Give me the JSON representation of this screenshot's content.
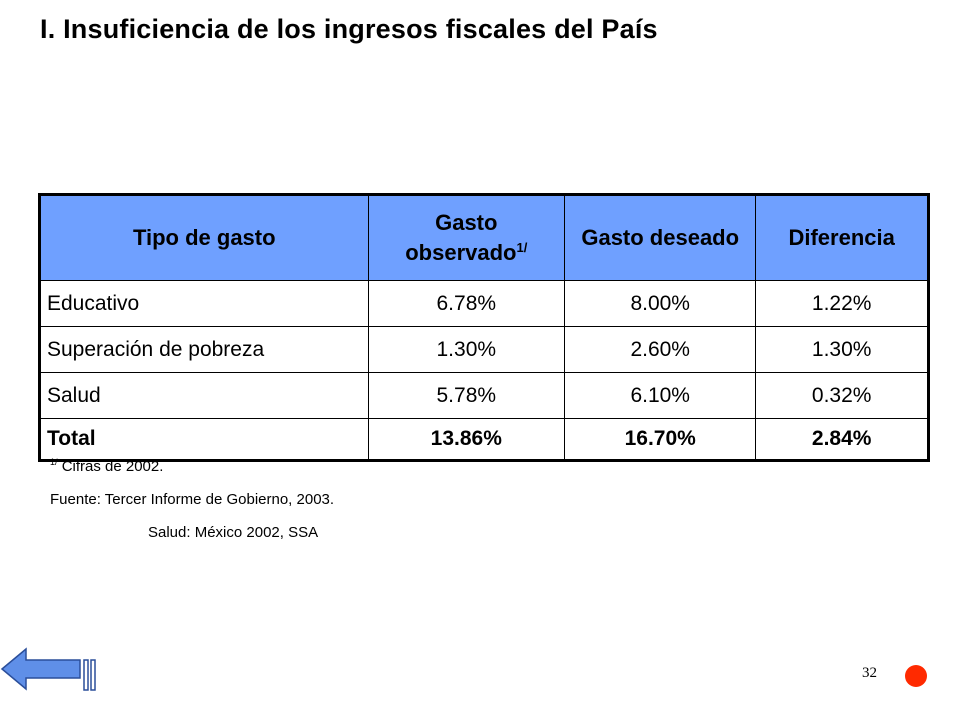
{
  "slide": {
    "title": "I. Insuficiencia de los ingresos fiscales del País",
    "page_number": "32"
  },
  "table": {
    "headers": {
      "tipo": "Tipo de gasto",
      "observado": "Gasto observado",
      "observado_sup": "1/",
      "deseado": "Gasto deseado",
      "diferencia": "Diferencia"
    },
    "rows": [
      {
        "tipo": "Educativo",
        "observado": "6.78%",
        "deseado": "8.00%",
        "diferencia": "1.22%"
      },
      {
        "tipo": "Superación de pobreza",
        "observado": "1.30%",
        "deseado": "2.60%",
        "diferencia": "1.30%"
      },
      {
        "tipo": "Salud",
        "observado": "5.78%",
        "deseado": "6.10%",
        "diferencia": "0.32%"
      }
    ],
    "total": {
      "tipo": "Total",
      "observado": "13.86%",
      "deseado": "16.70%",
      "diferencia": "2.84%"
    }
  },
  "notes": {
    "footnote_marker": "1/",
    "footnote_text": "Cifras de 2002.",
    "source": "Fuente: Tercer Informe de Gobierno, 2003.",
    "source_extra": "Salud: México 2002, SSA"
  },
  "colors": {
    "header_bg": "#6fa0ff",
    "arrow": "#5f8fe8",
    "record_dot": "#ff2a00"
  },
  "icons": {
    "back": "back-arrow-icon",
    "record": "red-dot-icon"
  }
}
